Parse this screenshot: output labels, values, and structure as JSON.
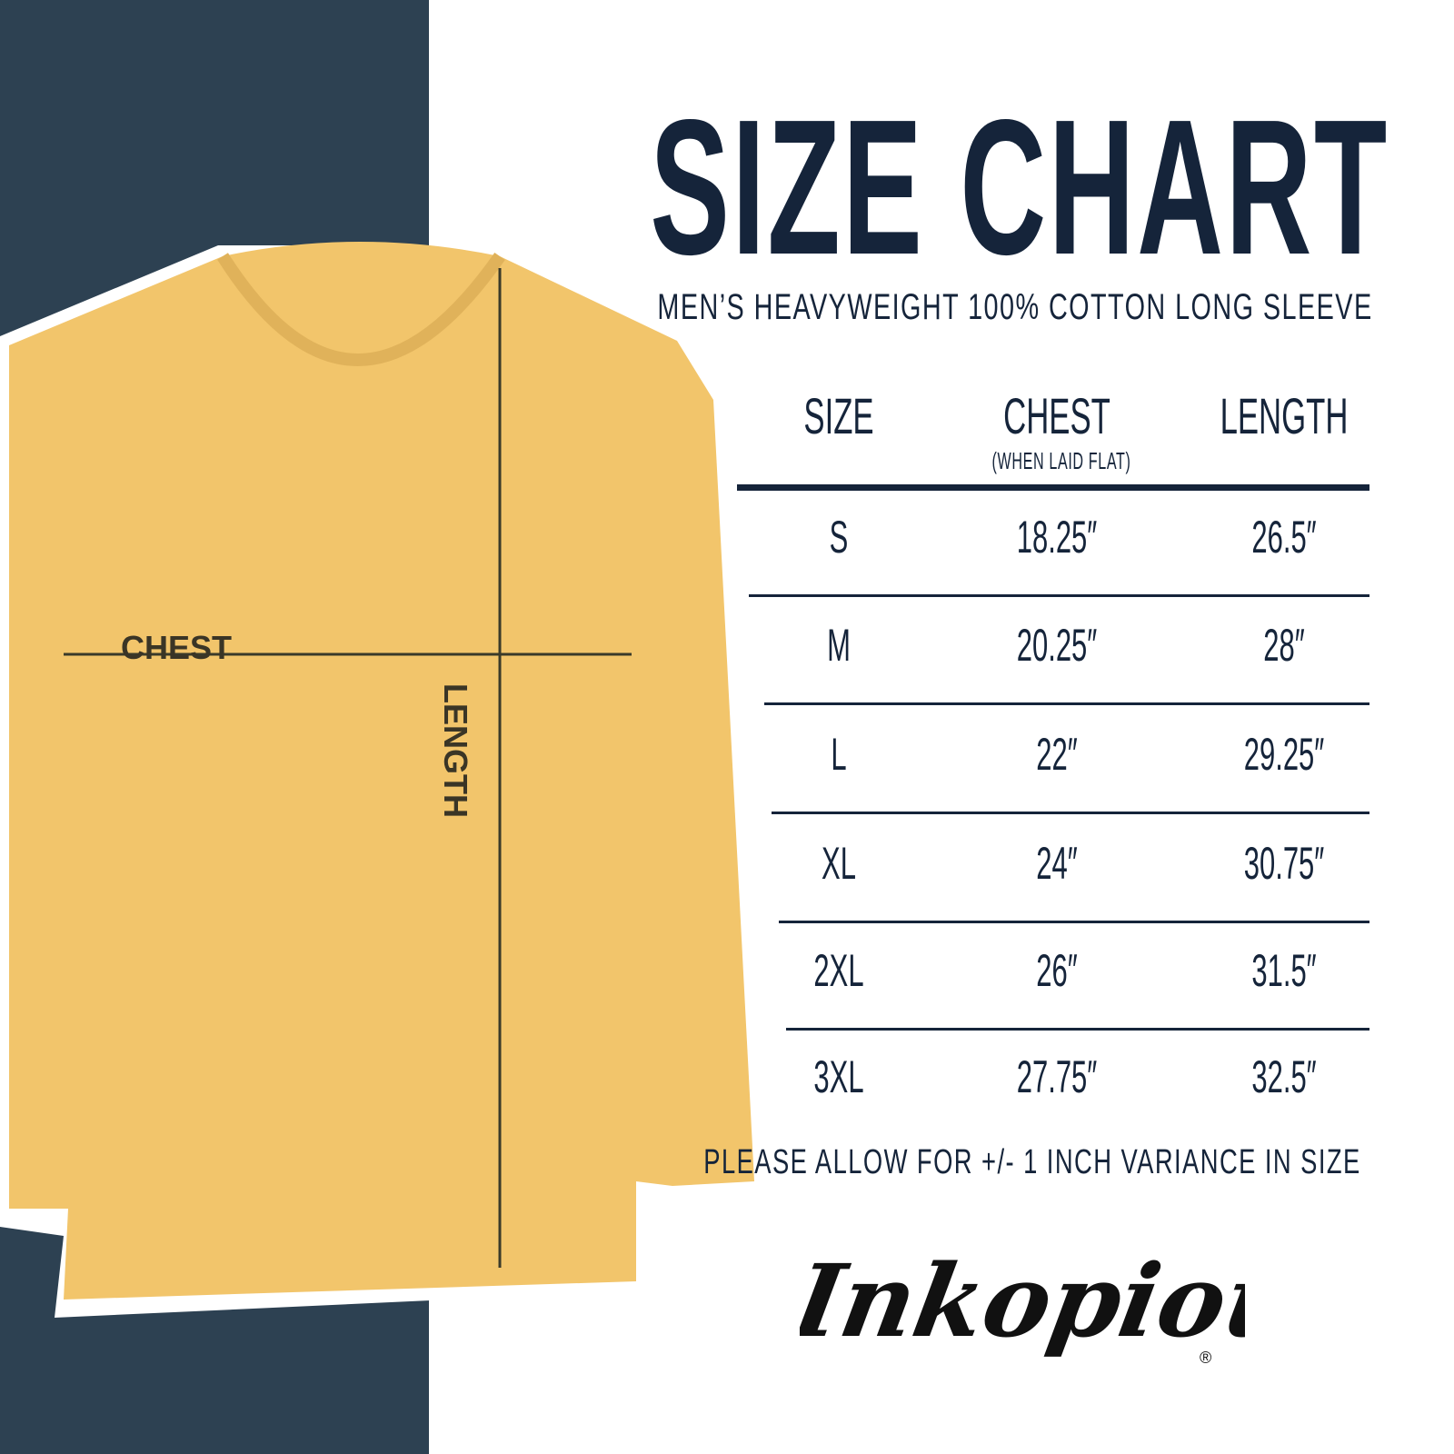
{
  "title": "SIZE CHART",
  "subtitle": "MEN’S HEAVYWEIGHT 100% COTTON LONG SLEEVE",
  "diagram": {
    "chest_label": "CHEST",
    "length_label": "LENGTH"
  },
  "note": "PLEASE ALLOW FOR +/- 1 INCH VARIANCE IN SIZE",
  "brand": "Inkopious®",
  "colors": {
    "navy": "#2d4152",
    "shirt": "#f2c56b",
    "text": "#15243a"
  },
  "chart_data": {
    "type": "table",
    "columns": [
      "SIZE",
      "CHEST",
      "LENGTH"
    ],
    "column_notes": {
      "CHEST": "(WHEN LAID FLAT)"
    },
    "rows": [
      [
        "S",
        "18.25″",
        "26.5″"
      ],
      [
        "M",
        "20.25″",
        "28″"
      ],
      [
        "L",
        "22″",
        "29.25″"
      ],
      [
        "XL",
        "24″",
        "30.75″"
      ],
      [
        "2XL",
        "26″",
        "31.5″"
      ],
      [
        "3XL",
        "27.75″",
        "32.5″"
      ]
    ]
  }
}
